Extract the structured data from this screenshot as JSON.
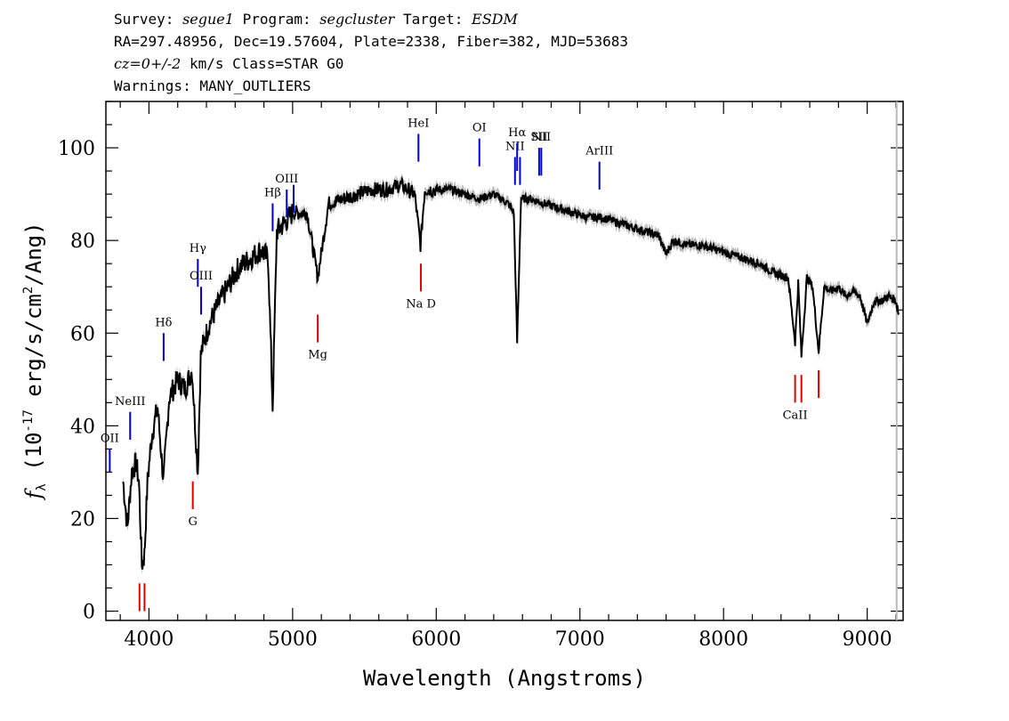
{
  "header": {
    "line1": {
      "survey_label": "Survey: ",
      "survey_value": "segue1",
      "program_label": " Program: ",
      "program_value": "segcluster",
      "target_label": " Target: ",
      "target_value": "ESDM"
    },
    "line2": "RA=297.48956, Dec=19.57604, Plate=2338, Fiber=382, MJD=53683",
    "line3": {
      "cz_label": "cz=0+/-2",
      "cz_rest": " km/s Class=STAR G0"
    },
    "line4": "Warnings: MANY_OUTLIERS"
  },
  "chart_data": {
    "type": "line",
    "xlabel": "Wavelength (Angstroms)",
    "ylabel": "f_λ (10^-17 erg/s/cm^2/Ang)",
    "xlim": [
      3700,
      9250
    ],
    "ylim": [
      -2,
      110
    ],
    "x_ticks": [
      4000,
      5000,
      6000,
      7000,
      8000,
      9000
    ],
    "y_ticks": [
      0,
      20,
      40,
      60,
      80,
      100
    ],
    "grid": false,
    "series": [
      {
        "color": "#000000",
        "error_color": "#b8b8b8",
        "x": [
          3820,
          3850,
          3880,
          3910,
          3930,
          3950,
          3968,
          3990,
          4020,
          4060,
          4101,
          4140,
          4200,
          4250,
          4300,
          4340,
          4360,
          4380,
          4420,
          4480,
          4550,
          4620,
          4700,
          4780,
          4830,
          4861,
          4890,
          4950,
          5000,
          5100,
          5175,
          5250,
          5350,
          5450,
          5550,
          5650,
          5750,
          5850,
          5890,
          5920,
          6000,
          6100,
          6200,
          6300,
          6400,
          6500,
          6540,
          6563,
          6590,
          6650,
          6750,
          6850,
          6950,
          7050,
          7150,
          7250,
          7350,
          7450,
          7550,
          7600,
          7650,
          7750,
          7850,
          7950,
          8050,
          8150,
          8250,
          8350,
          8450,
          8498,
          8520,
          8542,
          8580,
          8620,
          8662,
          8700,
          8750,
          8800,
          8850,
          8900,
          8950,
          9000,
          9050,
          9100,
          9150,
          9200,
          9220
        ],
        "y": [
          28,
          18,
          30,
          32,
          28,
          10,
          12,
          28,
          38,
          44,
          28,
          46,
          50,
          48,
          52,
          30,
          55,
          58,
          62,
          66,
          70,
          74,
          76,
          78,
          76,
          44,
          82,
          84,
          86,
          86,
          72,
          88,
          89,
          90,
          91,
          91,
          92,
          90,
          79,
          91,
          91,
          91,
          90,
          89,
          90,
          88,
          86,
          58,
          89,
          89,
          88,
          87,
          86,
          85,
          85,
          84,
          83,
          82,
          81,
          77,
          80,
          79,
          79,
          78,
          77,
          76,
          75,
          73,
          72,
          58,
          71,
          55,
          72,
          70,
          56,
          70,
          69,
          70,
          68,
          69,
          68,
          62,
          67,
          67,
          68,
          67,
          64
        ]
      }
    ],
    "markers": {
      "emission_color": "#0000cc",
      "absorption_color": "#dd0000",
      "emission": [
        {
          "label": "OII",
          "x": 3727,
          "y_low": 30,
          "y_high": 35
        },
        {
          "label": "NeIII",
          "x": 3869,
          "y_low": 37,
          "y_high": 43
        },
        {
          "label": "Hδ",
          "x": 4102,
          "y_low": 54,
          "y_high": 60
        },
        {
          "label": "Hγ",
          "x": 4340,
          "y_low": 70,
          "y_high": 76
        },
        {
          "label": "OIII",
          "x": 4363,
          "y_low": 64,
          "y_high": 70
        },
        {
          "label": "Hβ",
          "x": 4861,
          "y_low": 82,
          "y_high": 88
        },
        {
          "label": "OIII",
          "x": 4959,
          "y_low": 85,
          "y_high": 91
        },
        {
          "label": "",
          "x": 5007,
          "y_low": 86,
          "y_high": 92
        },
        {
          "label": "HeI",
          "x": 5876,
          "y_low": 97,
          "y_high": 103
        },
        {
          "label": "OI",
          "x": 6300,
          "y_low": 96,
          "y_high": 102
        },
        {
          "label": "NII",
          "x": 6548,
          "y_low": 92,
          "y_high": 98
        },
        {
          "label": "Hα",
          "x": 6563,
          "y_low": 95,
          "y_high": 101
        },
        {
          "label": "",
          "x": 6583,
          "y_low": 92,
          "y_high": 98
        },
        {
          "label": "SII",
          "x": 6716,
          "y_low": 94,
          "y_high": 100
        },
        {
          "label": "NII",
          "x": 6731,
          "y_low": 94,
          "y_high": 100
        },
        {
          "label": "ArIII",
          "x": 7136,
          "y_low": 91,
          "y_high": 97
        }
      ],
      "absorption": [
        {
          "label": "",
          "x": 3934,
          "y_low": 0,
          "y_high": 6
        },
        {
          "label": "",
          "x": 3969,
          "y_low": 0,
          "y_high": 6
        },
        {
          "label": "G",
          "x": 4305,
          "y_low": 22,
          "y_high": 28
        },
        {
          "label": "Mg",
          "x": 5175,
          "y_low": 58,
          "y_high": 64
        },
        {
          "label": "Na D",
          "x": 5893,
          "y_low": 69,
          "y_high": 75
        },
        {
          "label": "CaII",
          "x": 8498,
          "y_low": 45,
          "y_high": 51
        },
        {
          "label": "",
          "x": 8542,
          "y_low": 45,
          "y_high": 51
        },
        {
          "label": "",
          "x": 8662,
          "y_low": 46,
          "y_high": 52
        }
      ]
    }
  }
}
